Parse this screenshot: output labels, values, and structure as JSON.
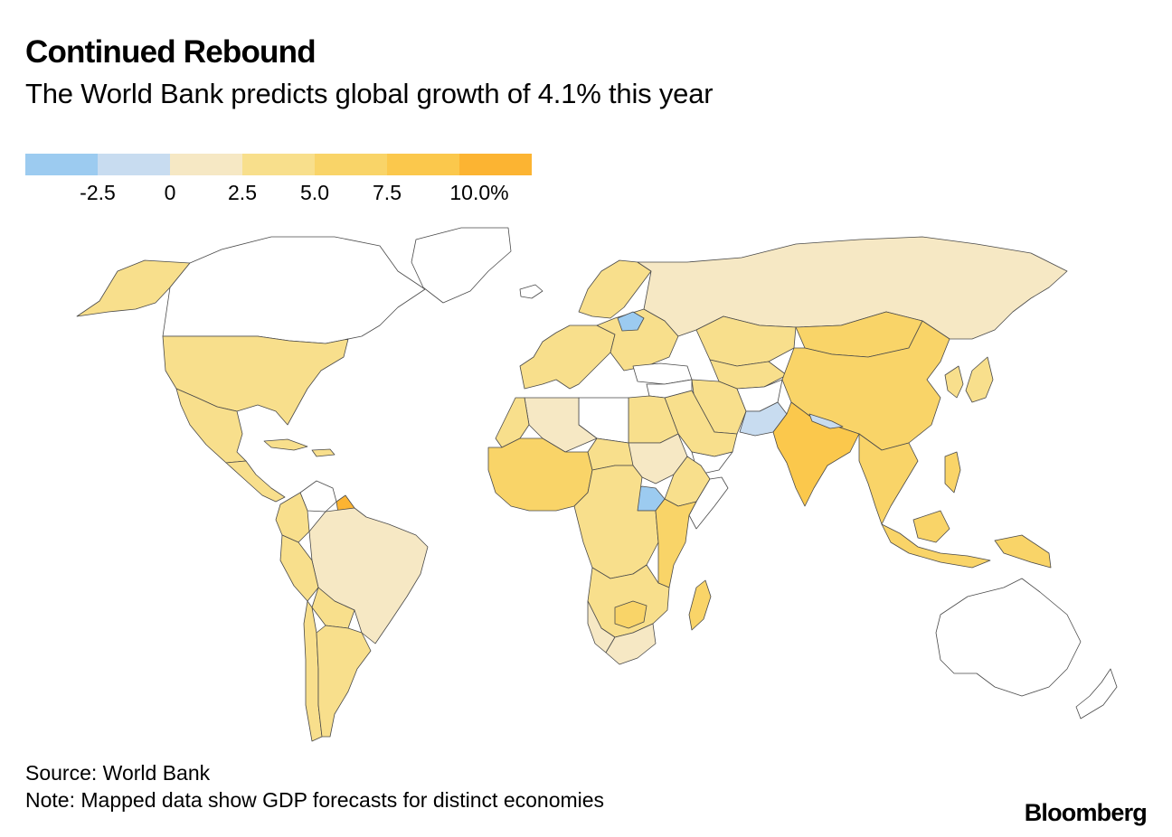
{
  "header": {
    "title": "Continued Rebound",
    "subtitle": "The World Bank predicts global growth of 4.1% this year"
  },
  "legend": {
    "colors": [
      "#9ccbf0",
      "#c8dcf0",
      "#f6e8c4",
      "#f8df8c",
      "#f9d468",
      "#fbc84c",
      "#fcb432"
    ],
    "labels": [
      "-2.5",
      "0",
      "2.5",
      "5.0",
      "7.5",
      "10.0%"
    ]
  },
  "map": {
    "nodata_color": "#ffffff",
    "stroke_color": "#4a4a4a",
    "regions": [
      {
        "name": "Alaska",
        "bin": 4
      },
      {
        "name": "Canada",
        "bin": null
      },
      {
        "name": "United States",
        "bin": 4
      },
      {
        "name": "Mexico",
        "bin": 4
      },
      {
        "name": "Central America",
        "bin": 4
      },
      {
        "name": "Caribbean",
        "bin": 4
      },
      {
        "name": "Venezuela",
        "bin": null
      },
      {
        "name": "Colombia",
        "bin": 4
      },
      {
        "name": "Guyana",
        "bin": 7
      },
      {
        "name": "Brazil",
        "bin": 3
      },
      {
        "name": "Peru",
        "bin": 4
      },
      {
        "name": "Bolivia",
        "bin": 4
      },
      {
        "name": "Chile",
        "bin": 4
      },
      {
        "name": "Argentina",
        "bin": 4
      },
      {
        "name": "Greenland",
        "bin": null
      },
      {
        "name": "Iceland",
        "bin": null
      },
      {
        "name": "Western Europe",
        "bin": 4
      },
      {
        "name": "Scandinavia",
        "bin": 4
      },
      {
        "name": "Eastern Europe",
        "bin": 4
      },
      {
        "name": "Belarus",
        "bin": 1
      },
      {
        "name": "Turkey",
        "bin": null
      },
      {
        "name": "Russia",
        "bin": 3
      },
      {
        "name": "Kazakhstan",
        "bin": 4
      },
      {
        "name": "Central Asia",
        "bin": 4
      },
      {
        "name": "Mongolia",
        "bin": 5
      },
      {
        "name": "China",
        "bin": 5
      },
      {
        "name": "Korea",
        "bin": 4
      },
      {
        "name": "Japan",
        "bin": 4
      },
      {
        "name": "Iran",
        "bin": 4
      },
      {
        "name": "Afghanistan",
        "bin": null
      },
      {
        "name": "Pakistan",
        "bin": 2
      },
      {
        "name": "India",
        "bin": 6
      },
      {
        "name": "Nepal",
        "bin": 2
      },
      {
        "name": "Southeast Asia",
        "bin": 5
      },
      {
        "name": "Indonesia",
        "bin": 5
      },
      {
        "name": "Philippines",
        "bin": 5
      },
      {
        "name": "Papua New Guinea",
        "bin": 5
      },
      {
        "name": "Australia",
        "bin": null
      },
      {
        "name": "New Zealand",
        "bin": null
      },
      {
        "name": "Saudi Arabia",
        "bin": 4
      },
      {
        "name": "Yemen",
        "bin": null
      },
      {
        "name": "Syria",
        "bin": null
      },
      {
        "name": "Egypt",
        "bin": 4
      },
      {
        "name": "Libya",
        "bin": null
      },
      {
        "name": "Algeria",
        "bin": 3
      },
      {
        "name": "Morocco",
        "bin": 4
      },
      {
        "name": "West Africa",
        "bin": 5
      },
      {
        "name": "Sahel",
        "bin": 4
      },
      {
        "name": "Sudan",
        "bin": 3
      },
      {
        "name": "South Sudan",
        "bin": 1
      },
      {
        "name": "Ethiopia",
        "bin": 4
      },
      {
        "name": "Somalia",
        "bin": null
      },
      {
        "name": "Central Africa",
        "bin": 4
      },
      {
        "name": "East Africa",
        "bin": 5
      },
      {
        "name": "Southern Africa",
        "bin": 4
      },
      {
        "name": "Namibia",
        "bin": 3
      },
      {
        "name": "South Africa",
        "bin": 3
      },
      {
        "name": "Zimbabwe",
        "bin": 5
      },
      {
        "name": "Madagascar",
        "bin": 5
      }
    ]
  },
  "footer": {
    "source": "Source: World Bank",
    "note": "Note: Mapped data show GDP forecasts for distinct economies",
    "logo": "Bloomberg"
  }
}
